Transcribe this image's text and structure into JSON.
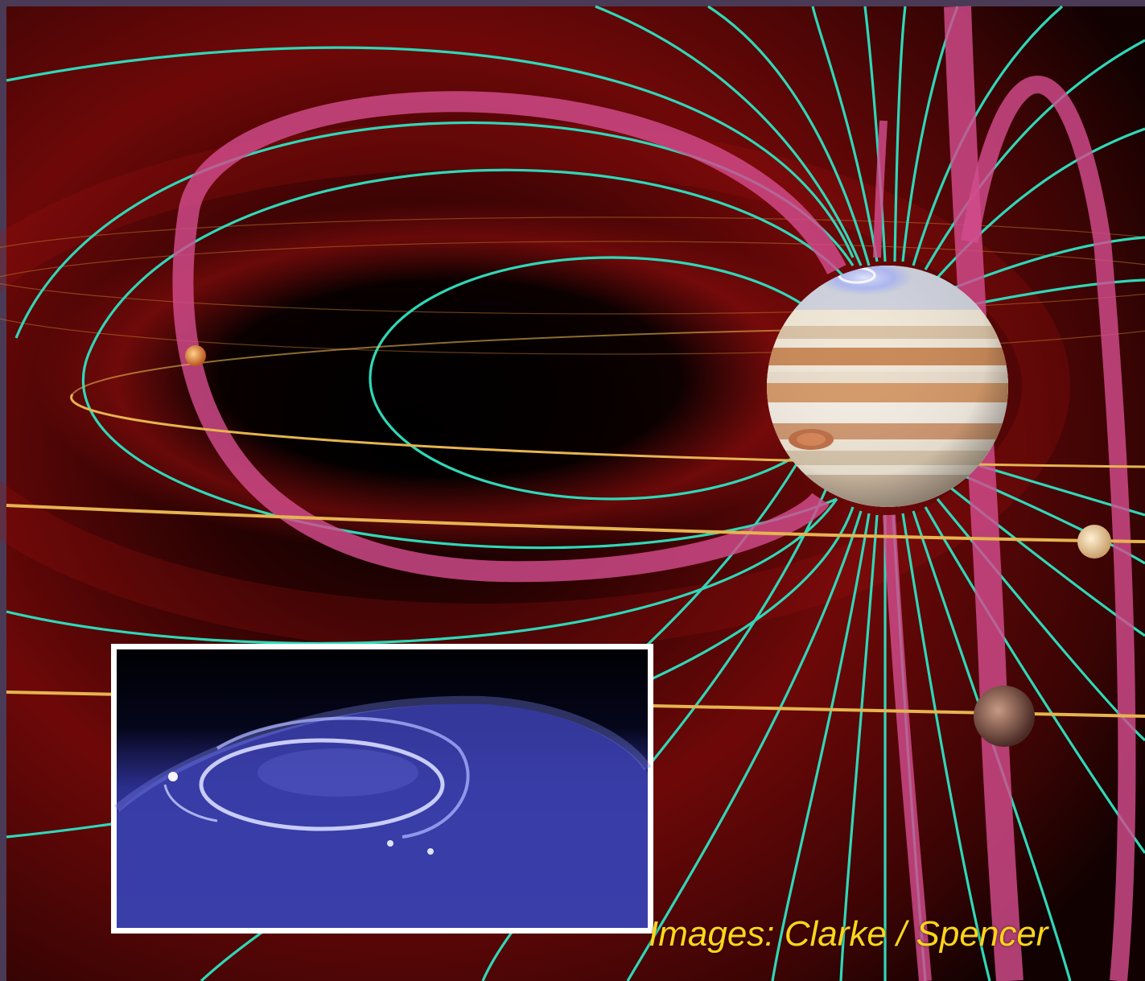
{
  "image": {
    "subject": "jupiter-magnetosphere-illustration",
    "inset": "jupiter-aurora-photo"
  },
  "caption": {
    "credit": "Images: Clarke / Spencer"
  },
  "colors": {
    "background_red": "#7a0a0a",
    "field_lines": "#2fd8b8",
    "flux_tubes": "#d24c8c",
    "orbits": "#e6b450",
    "aurora_blue": "#6b6fe0",
    "credit_text": "#ffd51a",
    "frame": "#4a3a55"
  }
}
